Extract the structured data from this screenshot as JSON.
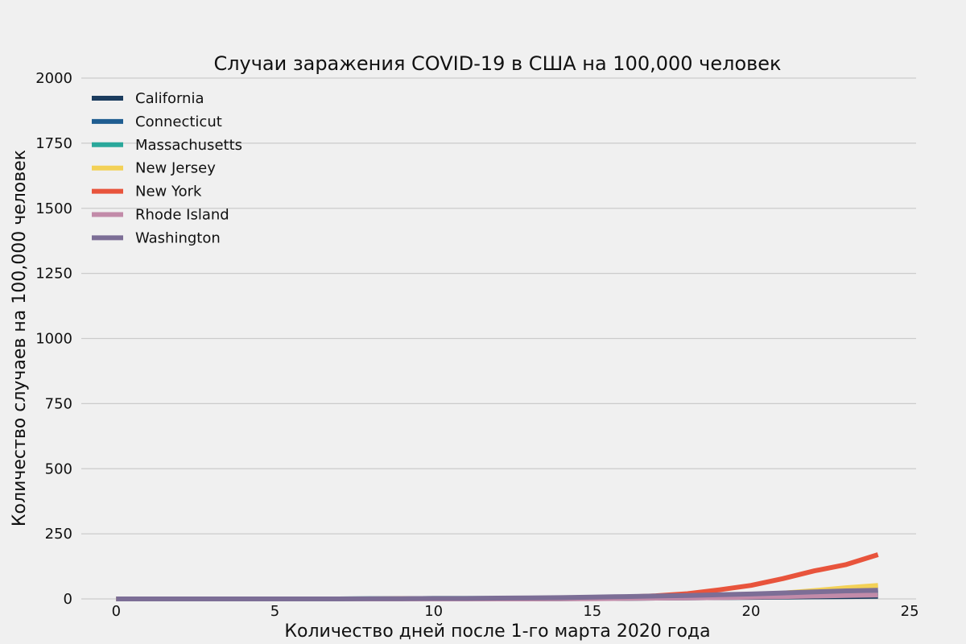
{
  "chart_data": {
    "type": "line",
    "title": "Случаи заражения COVID-19 в США на 100,000 человек",
    "xlabel": "Количество дней после 1-го марта 2020 года",
    "ylabel": "Количество случаев на 100,000 человек",
    "xlim": [
      -1.1,
      25.2
    ],
    "ylim": [
      0,
      2000
    ],
    "xticks": [
      "0",
      "5",
      "10",
      "15",
      "20",
      "25"
    ],
    "yticks": [
      "0",
      "250",
      "500",
      "750",
      "1000",
      "1250",
      "1500",
      "1750",
      "2000"
    ],
    "grid": true,
    "grid_axis": "y",
    "legend_position": "top-left",
    "x": [
      0,
      1,
      2,
      3,
      4,
      5,
      6,
      7,
      8,
      9,
      10,
      11,
      12,
      13,
      14,
      15,
      16,
      17,
      18,
      19,
      20,
      21,
      22,
      23,
      24
    ],
    "series": [
      {
        "name": "California",
        "color": "#1b3c5e",
        "values": [
          0,
          0,
          0,
          0,
          0,
          0,
          0,
          0,
          0,
          0,
          0,
          1,
          1,
          1,
          1,
          2,
          2,
          3,
          4,
          5,
          6,
          7,
          8,
          9,
          10
        ]
      },
      {
        "name": "Connecticut",
        "color": "#1f5d91",
        "values": [
          0,
          0,
          0,
          0,
          0,
          0,
          0,
          0,
          0,
          0,
          0,
          0,
          1,
          1,
          2,
          3,
          4,
          6,
          9,
          12,
          14,
          18,
          20,
          22,
          24
        ]
      },
      {
        "name": "Massachusetts",
        "color": "#2aa89b",
        "values": [
          0,
          0,
          0,
          0,
          0,
          0,
          0,
          0,
          1,
          1,
          2,
          2,
          2,
          2,
          3,
          3,
          4,
          5,
          6,
          7,
          9,
          11,
          13,
          15,
          17
        ]
      },
      {
        "name": "New Jersey",
        "color": "#f3d157",
        "values": [
          0,
          0,
          0,
          0,
          0,
          0,
          0,
          0,
          0,
          0,
          0,
          0,
          1,
          1,
          2,
          3,
          5,
          7,
          10,
          13,
          16,
          22,
          32,
          43,
          52
        ]
      },
      {
        "name": "New York",
        "color": "#e8543c",
        "values": [
          0,
          0,
          0,
          0,
          0,
          0,
          0,
          0,
          0,
          1,
          1,
          1,
          1,
          2,
          3,
          5,
          7,
          12,
          20,
          35,
          52,
          78,
          108,
          132,
          170
        ]
      },
      {
        "name": "Rhode Island",
        "color": "#c28ba9",
        "values": [
          0,
          0,
          0,
          0,
          0,
          0,
          0,
          0,
          0,
          0,
          0,
          0,
          0,
          0,
          1,
          1,
          2,
          3,
          4,
          5,
          7,
          9,
          11,
          13,
          15
        ]
      },
      {
        "name": "Washington",
        "color": "#7c6e96",
        "values": [
          0,
          0,
          0,
          0,
          0,
          0,
          0,
          0,
          1,
          1,
          2,
          2,
          3,
          4,
          5,
          7,
          9,
          11,
          13,
          16,
          19,
          23,
          27,
          31,
          33
        ]
      }
    ]
  }
}
